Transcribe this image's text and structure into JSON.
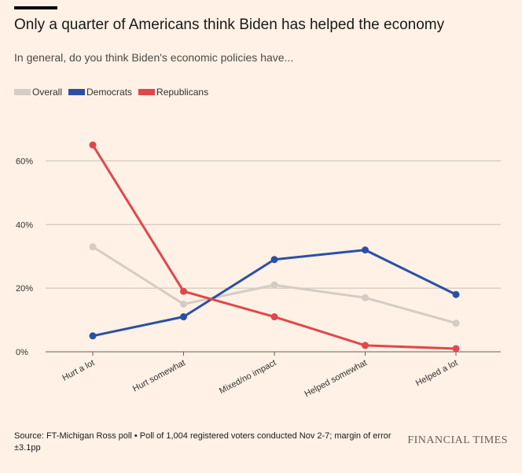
{
  "title": "Only a quarter of Americans think Biden has helped the economy",
  "subtitle": "In general, do you think Biden's economic policies have...",
  "source": "Source: FT-Michigan Ross poll • Poll of 1,004 registered voters conducted Nov 2-7; margin of error ±3.1pp",
  "brand": "FINANCIAL TIMES",
  "chart_data": {
    "type": "line",
    "title": "Only a quarter of Americans think Biden has helped the economy",
    "subtitle": "In general, do you think Biden's economic policies have...",
    "categories": [
      "Hurt a lot",
      "Hurt somewhat",
      "Mixed/no impact",
      "Helped somewhat",
      "Helped a lot"
    ],
    "yticks": [
      0,
      20,
      40,
      60
    ],
    "ytick_labels": [
      "0%",
      "20%",
      "40%",
      "60%"
    ],
    "ylim": [
      0,
      70
    ],
    "xlabel": "",
    "ylabel": "",
    "grid": true,
    "legend_position": "top-left",
    "series": [
      {
        "name": "Overall",
        "color": "#d5ccc4",
        "values": [
          33,
          15,
          21,
          17,
          9
        ]
      },
      {
        "name": "Democrats",
        "color": "#2c4fa6",
        "values": [
          5,
          11,
          29,
          32,
          18
        ]
      },
      {
        "name": "Republicans",
        "color": "#e0474c",
        "values": [
          65,
          19,
          11,
          2,
          1
        ]
      }
    ]
  }
}
